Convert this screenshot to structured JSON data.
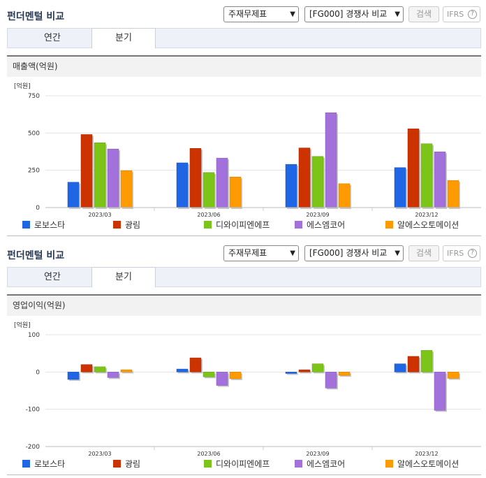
{
  "sections": [
    {
      "title": "펀더멘털 비교",
      "select_statement": "주재무제표",
      "select_peer": "[FG000] 경쟁사 비교",
      "search_label": "검색",
      "ifrs_label": "IFRS",
      "help_label": "?",
      "tabs": [
        "연간",
        "분기"
      ],
      "active_tab": 1,
      "subtitle": "매출액(억원)"
    },
    {
      "title": "펀더멘털 비교",
      "select_statement": "주재무제표",
      "select_peer": "[FG000] 경쟁사 비교",
      "search_label": "검색",
      "ifrs_label": "IFRS",
      "help_label": "?",
      "tabs": [
        "연간",
        "분기"
      ],
      "active_tab": 1,
      "subtitle": "영업이익(억원)"
    }
  ],
  "legend_colors": [
    "#1f66e5",
    "#cc3300",
    "#7cc418",
    "#a371dc",
    "#ff9a00"
  ],
  "chart_data": [
    {
      "type": "bar",
      "unit_label": "[억원]",
      "categories": [
        "2023/03",
        "2023/06",
        "2023/09",
        "2023/12"
      ],
      "ylim": [
        0,
        750
      ],
      "yticks": [
        0,
        250,
        500,
        750
      ],
      "grid": true,
      "series": [
        {
          "name": "로보스타",
          "values": [
            170,
            300,
            290,
            268
          ]
        },
        {
          "name": "광림",
          "values": [
            490,
            397,
            400,
            528
          ]
        },
        {
          "name": "디와이피엔에프",
          "values": [
            435,
            235,
            343,
            428
          ]
        },
        {
          "name": "에스엠코어",
          "values": [
            393,
            332,
            636,
            374
          ]
        },
        {
          "name": "알에스오토메이션",
          "values": [
            248,
            205,
            160,
            182
          ]
        }
      ]
    },
    {
      "type": "bar",
      "unit_label": "[억원]",
      "categories": [
        "2023/03",
        "2023/06",
        "2023/09",
        "2023/12"
      ],
      "ylim": [
        -200,
        100
      ],
      "yticks": [
        -200,
        -100,
        0,
        100
      ],
      "grid": true,
      "series": [
        {
          "name": "로보스타",
          "values": [
            -20,
            8,
            -4,
            22
          ]
        },
        {
          "name": "광림",
          "values": [
            20,
            38,
            6,
            42
          ]
        },
        {
          "name": "디와이피엔에프",
          "values": [
            14,
            -13,
            22,
            58
          ]
        },
        {
          "name": "에스엠코어",
          "values": [
            -15,
            -36,
            -43,
            -103
          ]
        },
        {
          "name": "알에스오토메이션",
          "values": [
            6,
            -18,
            -9,
            -17
          ]
        }
      ]
    }
  ]
}
